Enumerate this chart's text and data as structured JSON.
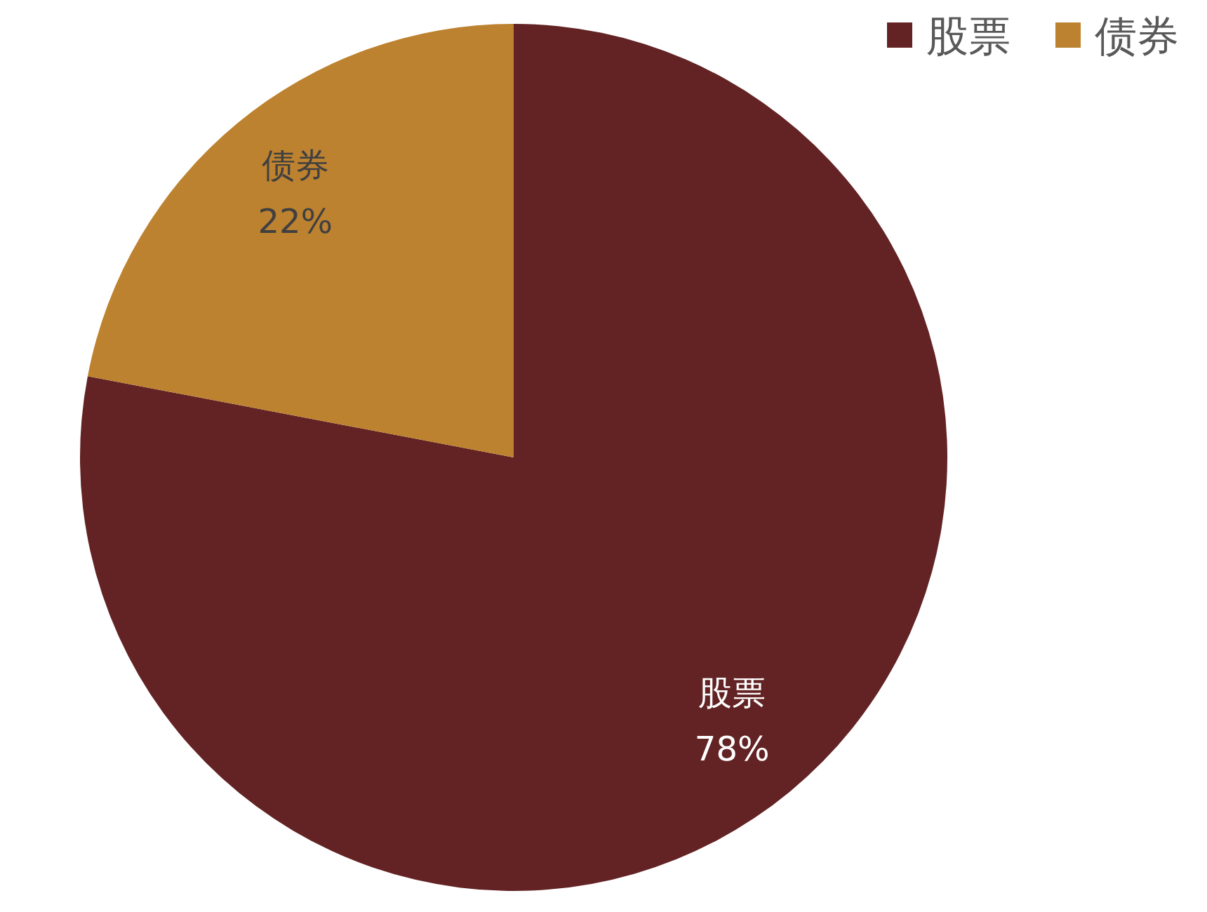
{
  "chart_data": {
    "type": "pie",
    "categories": [
      "股票",
      "债券"
    ],
    "values": [
      78,
      22
    ],
    "colors": [
      "#632324",
      "#bd822f"
    ],
    "value_labels": [
      "78%",
      "22%"
    ],
    "legend": "top right"
  }
}
